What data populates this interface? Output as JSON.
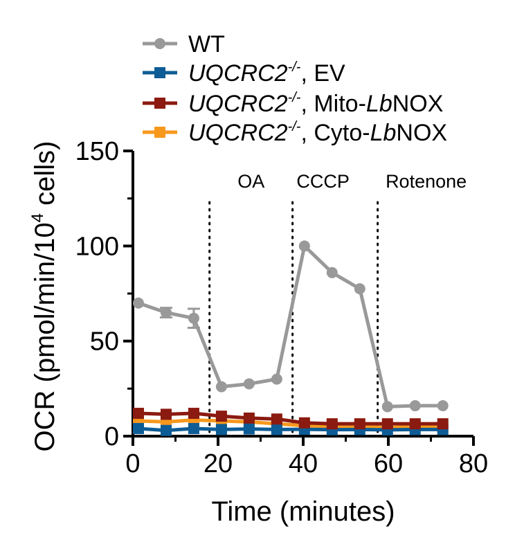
{
  "chart_data": {
    "type": "line",
    "xlabel": "Time (minutes)",
    "ylabel": "OCR (pmol/min/10",
    "ylabel_sup": "4",
    "ylabel_end": " cells)",
    "xlim": [
      0,
      80
    ],
    "ylim": [
      0,
      150
    ],
    "xticks": [
      "0",
      "20",
      "40",
      "60",
      "80"
    ],
    "yticks": [
      "0",
      "50",
      "100",
      "150"
    ],
    "grid": false,
    "legend_position": "top",
    "injections": [
      {
        "label": "OA",
        "x": 18
      },
      {
        "label": "CCCP",
        "x": 37.5
      },
      {
        "label": "Rotenone",
        "x": 57.5
      }
    ],
    "x": [
      1.3,
      7.8,
      14.3,
      20.8,
      27.3,
      33.8,
      40.3,
      46.8,
      53.3,
      59.8,
      66.3,
      72.8
    ],
    "series": [
      {
        "name": "WT",
        "color": "#999999",
        "marker": "circle",
        "values": [
          70,
          65,
          62,
          26,
          27.5,
          30,
          100,
          86,
          77.5,
          15.5,
          16,
          16
        ],
        "errors": [
          0,
          2.5,
          5,
          0,
          0,
          0,
          0,
          0,
          0,
          0,
          0,
          0
        ]
      },
      {
        "name": "UQCRC2-/-, EV",
        "name_parts": {
          "gene": "UQCRC2",
          "sup": "-/-",
          "rest": ", EV"
        },
        "color": "#0d5c96",
        "marker": "square",
        "values": [
          4,
          3,
          4,
          3.5,
          3.8,
          3.5,
          3.6,
          3.4,
          3.5,
          3.3,
          3.5,
          3.5
        ]
      },
      {
        "name": "UQCRC2-/-, Mito-LbNOX",
        "name_parts": {
          "gene": "UQCRC2",
          "sup": "-/-",
          "rest_a": ", Mito-",
          "rest_it": "Lb",
          "rest_b": "NOX"
        },
        "color": "#8b1a10",
        "marker": "square",
        "values": [
          12,
          11.5,
          12,
          10.5,
          9.5,
          9,
          7,
          6.5,
          6.5,
          6.5,
          6.5,
          6.5
        ]
      },
      {
        "name": "UQCRC2-/-, Cyto-LbNOX",
        "name_parts": {
          "gene": "UQCRC2",
          "sup": "-/-",
          "rest_a": ", Cyto-",
          "rest_it": "Lb",
          "rest_b": "NOX"
        },
        "color": "#f7981d",
        "marker": "square",
        "values": [
          8,
          7.5,
          8.5,
          8,
          7.5,
          6.5,
          5.5,
          5,
          5,
          4.5,
          5,
          5
        ]
      }
    ]
  }
}
